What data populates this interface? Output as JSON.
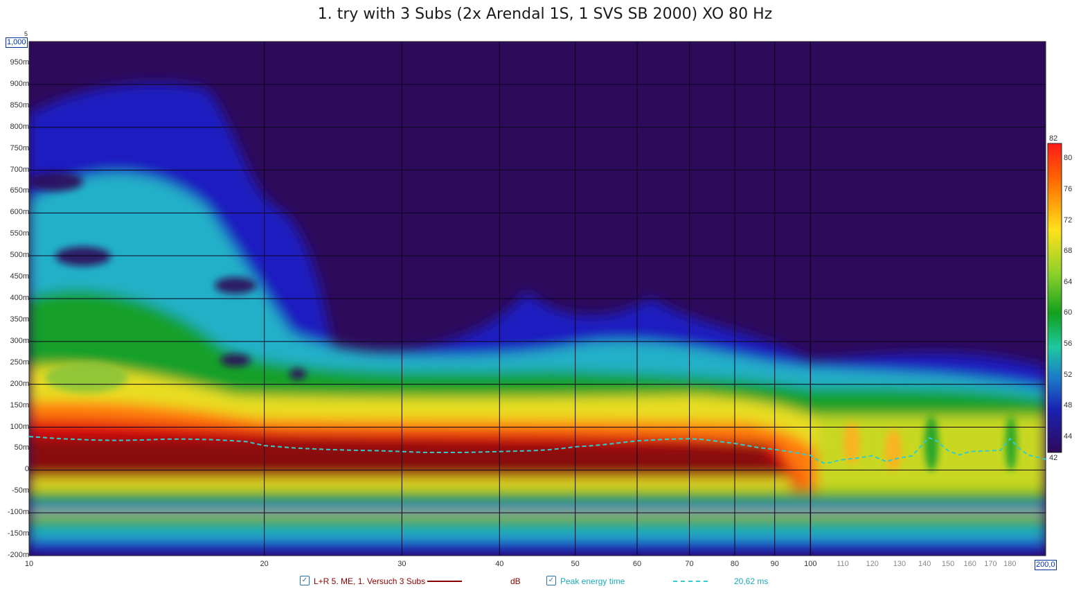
{
  "chart_data": {
    "type": "heatmap",
    "title": "1. try with 3 Subs (2x Arendal 1S, 1 SVS SB 2000) XO 80 Hz",
    "x_scale": "log",
    "xlim": [
      10,
      200
    ],
    "x_ticks": [
      "10",
      "20",
      "30",
      "40",
      "50",
      "60",
      "70",
      "80",
      "90",
      "100",
      "110",
      "120",
      "130",
      "140",
      "150",
      "160",
      "170",
      "180"
    ],
    "x_max_label": "200,0",
    "ylim": [
      -200,
      1000
    ],
    "y_ticks": [
      "1,000",
      "950m",
      "900m",
      "850m",
      "800m",
      "750m",
      "700m",
      "650m",
      "600m",
      "550m",
      "500m",
      "450m",
      "400m",
      "350m",
      "300m",
      "250m",
      "200m",
      "150m",
      "100m",
      "50m",
      "0",
      "-50m",
      "-100m",
      "-150m",
      "-200m"
    ],
    "y_top_marker": "5",
    "colorbar": {
      "min": 42,
      "max": 82,
      "ticks": [
        "82",
        "80",
        "76",
        "72",
        "68",
        "64",
        "60",
        "56",
        "52",
        "48",
        "44",
        "42"
      ]
    },
    "series": [
      {
        "name": "L+R 5. ME, 1. Versuch 3 Subs",
        "units": "dB",
        "color": "#8b0000"
      },
      {
        "name": "Peak energy time",
        "value_label": "20,62 ms",
        "color": "#33cccc",
        "x": [
          10,
          11,
          12,
          13,
          14,
          15,
          16,
          17,
          18,
          19,
          20,
          22,
          24,
          26,
          28,
          30,
          32,
          34,
          36,
          38,
          40,
          42,
          44,
          46,
          48,
          50,
          52,
          55,
          58,
          60,
          63,
          66,
          70,
          73,
          76,
          80,
          83,
          86,
          90,
          93,
          96,
          100,
          102,
          104,
          106,
          108,
          110,
          115,
          120,
          125,
          130,
          135,
          140,
          142,
          145,
          150,
          155,
          160,
          165,
          170,
          175,
          180,
          185,
          190,
          195,
          200
        ],
        "y": [
          78,
          73,
          70,
          69,
          70,
          72,
          72,
          71,
          69,
          66,
          57,
          51,
          48,
          46,
          45,
          43,
          41,
          41,
          41,
          42,
          43,
          44,
          45,
          47,
          50,
          54,
          56,
          60,
          65,
          68,
          70,
          72,
          73,
          71,
          67,
          62,
          57,
          52,
          48,
          44,
          40,
          34,
          24,
          16,
          17,
          21,
          24,
          28,
          33,
          20,
          28,
          33,
          65,
          75,
          68,
          45,
          35,
          43,
          44,
          45,
          46,
          73,
          50,
          35,
          30,
          25
        ]
      }
    ],
    "legend": [
      {
        "label": "L+R 5. ME, 1. Versuch 3 Subs",
        "unit": "dB",
        "checked": true
      },
      {
        "label": "Peak energy time",
        "value": "20,62 ms",
        "checked": true
      }
    ],
    "colors": {
      "background": "#2e0a5a",
      "grid": "#0d0420",
      "series1": "#8b0000",
      "series2": "#33cccc",
      "axis_box": "#003399"
    }
  }
}
